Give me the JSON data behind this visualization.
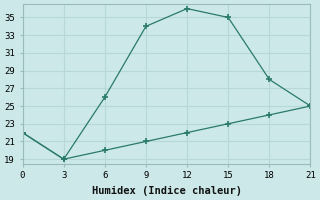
{
  "xlabel": "Humidex (Indice chaleur)",
  "line1_x": [
    0,
    3,
    6,
    9,
    12,
    15,
    18,
    21
  ],
  "line1_y": [
    22,
    19,
    26,
    34,
    36,
    35,
    28,
    25
  ],
  "line2_x": [
    0,
    3,
    6,
    9,
    12,
    15,
    18,
    21
  ],
  "line2_y": [
    22,
    19,
    20,
    21,
    22,
    23,
    24,
    25
  ],
  "line_color": "#2a7a6a",
  "bg_color": "#cce8e8",
  "grid_color": "#b8d8d8",
  "xlim": [
    0,
    21
  ],
  "ylim": [
    18.5,
    36.5
  ],
  "xticks": [
    0,
    3,
    6,
    9,
    12,
    15,
    18,
    21
  ],
  "yticks": [
    19,
    21,
    23,
    25,
    27,
    29,
    31,
    33,
    35
  ],
  "tick_fontsize": 6.5,
  "xlabel_fontsize": 7.5
}
